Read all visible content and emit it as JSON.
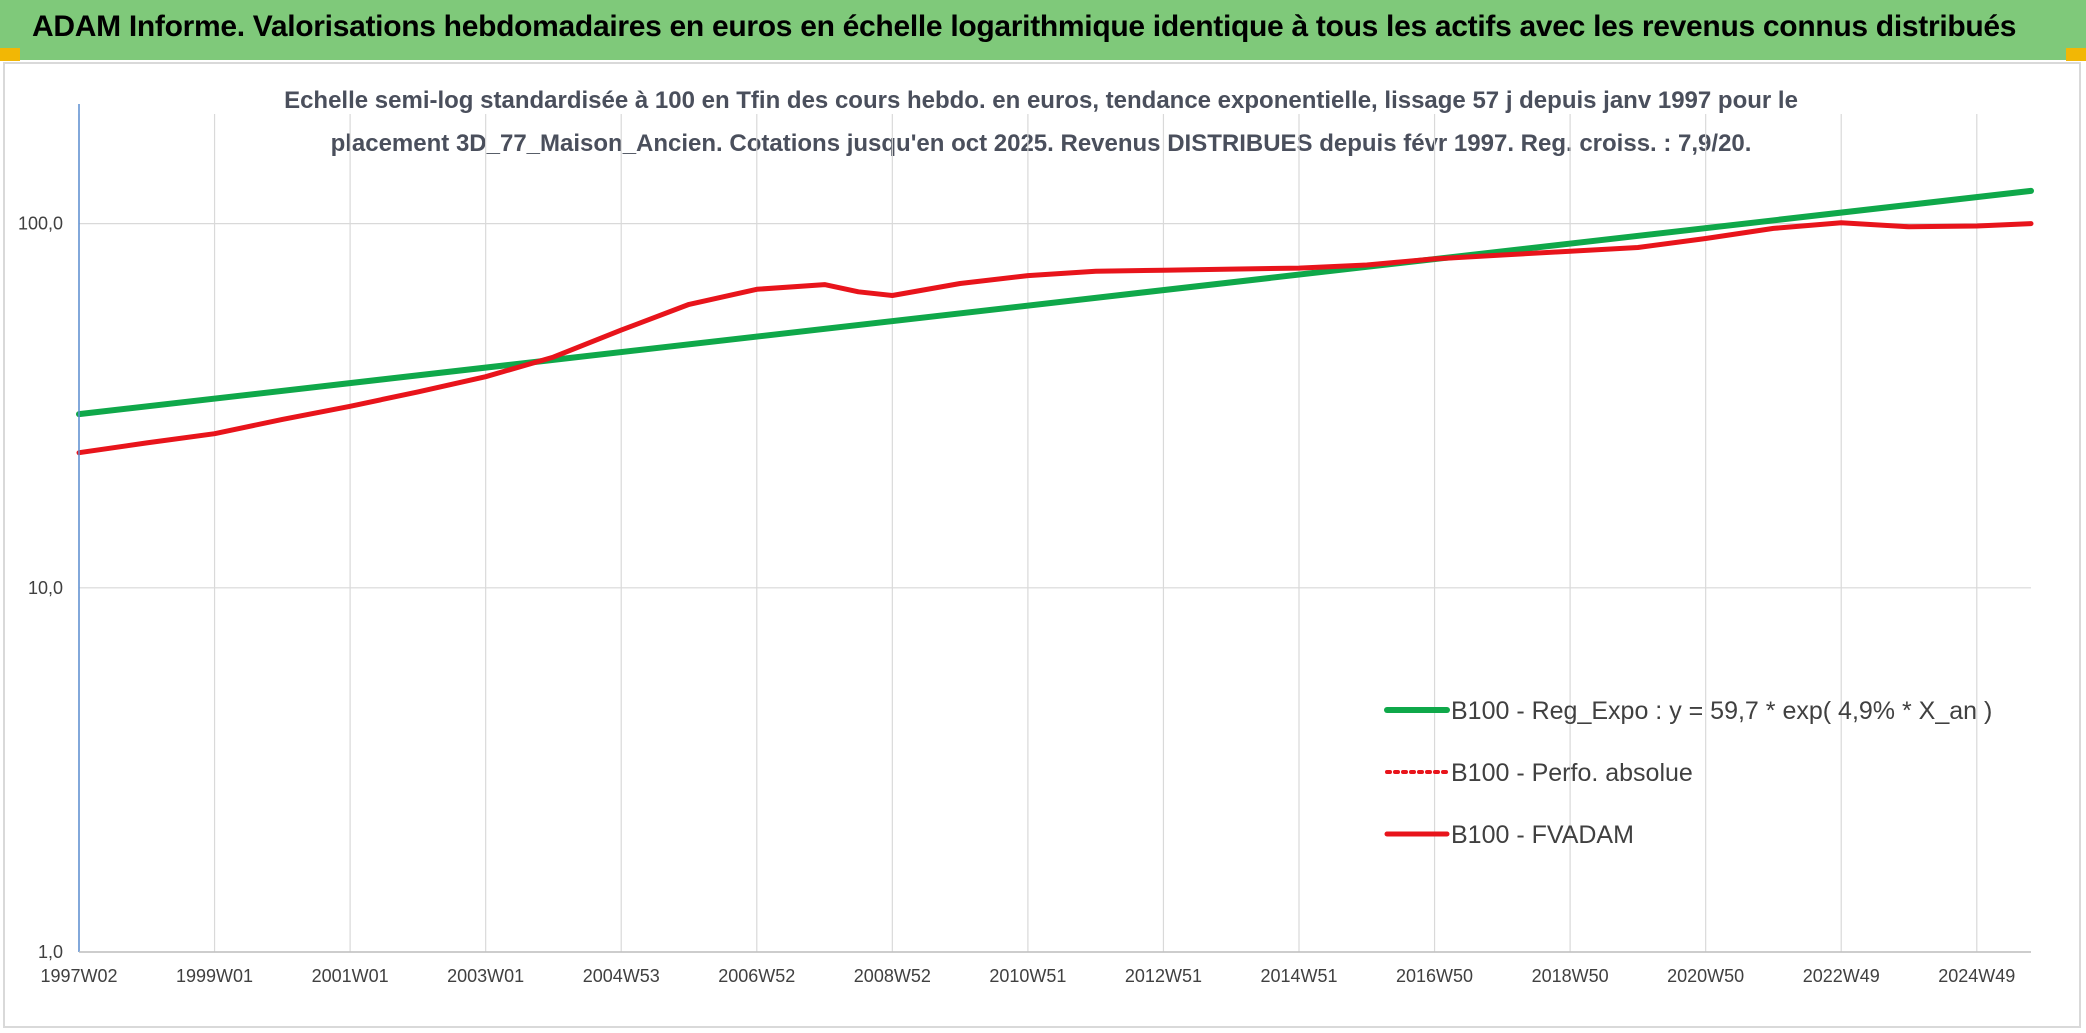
{
  "banner": {
    "title": "ADAM Informe. Valorisations hebdomadaires en euros en échelle logarithmique identique à tous les actifs avec les revenus connus distribués"
  },
  "colors": {
    "banner_bg": "#7fc97a",
    "corner_accent": "#f2b705",
    "regression": "#0fa84a",
    "fvadam": "#e8141b",
    "perfo": "#e8141b",
    "grid": "#d9d9d9",
    "axis": "#5b8ed1"
  },
  "chart_data": {
    "type": "line",
    "subtitle_lines": [
      "Echelle semi-log standardisée à 100 en Tfin des cours hebdo. en euros, tendance exponentielle, lissage 57 j depuis janv 1997 pour le",
      "placement 3D_77_Maison_Ancien. Cotations jusqu'en oct 2025. Revenus DISTRIBUES depuis févr 1997. Reg. croiss. : 7,9/20."
    ],
    "y_scale": "log",
    "ylim": [
      1,
      200
    ],
    "y_ticks": [
      {
        "value": 1,
        "label": "1,0"
      },
      {
        "value": 10,
        "label": "10,0"
      },
      {
        "value": 100,
        "label": "100,0"
      }
    ],
    "xlim": [
      1997.0,
      2025.8
    ],
    "x_ticks": [
      {
        "value": 1997.0,
        "label": "1997W02"
      },
      {
        "value": 1999.0,
        "label": "1999W01"
      },
      {
        "value": 2001.0,
        "label": "2001W01"
      },
      {
        "value": 2003.0,
        "label": "2003W01"
      },
      {
        "value": 2005.0,
        "label": "2004W53"
      },
      {
        "value": 2007.0,
        "label": "2006W52"
      },
      {
        "value": 2009.0,
        "label": "2008W52"
      },
      {
        "value": 2011.0,
        "label": "2010W51"
      },
      {
        "value": 2013.0,
        "label": "2012W51"
      },
      {
        "value": 2015.0,
        "label": "2014W51"
      },
      {
        "value": 2017.0,
        "label": "2016W50"
      },
      {
        "value": 2019.0,
        "label": "2018W50"
      },
      {
        "value": 2021.0,
        "label": "2020W50"
      },
      {
        "value": 2023.0,
        "label": "2022W49"
      },
      {
        "value": 2025.0,
        "label": "2024W49"
      }
    ],
    "legend_position": "bottom-right",
    "grid": true,
    "series": [
      {
        "name": "B100 - Reg_Expo : y = 59,7 * exp( 4,9% *  X_an )",
        "style": "solid-green",
        "x": [
          1997.0,
          2025.8
        ],
        "y": [
          30.0,
          123.0
        ]
      },
      {
        "name": "B100 - Perfo. absolue",
        "style": "dotted-red",
        "x": [],
        "y": []
      },
      {
        "name": "B100 - FVADAM",
        "style": "solid-red",
        "x": [
          1997.0,
          1998.0,
          1999.0,
          2000.0,
          2001.0,
          2002.0,
          2003.0,
          2004.0,
          2005.0,
          2006.0,
          2007.0,
          2008.0,
          2008.5,
          2009.0,
          2010.0,
          2011.0,
          2012.0,
          2013.0,
          2014.0,
          2015.0,
          2016.0,
          2017.0,
          2018.0,
          2019.0,
          2020.0,
          2021.0,
          2022.0,
          2023.0,
          2024.0,
          2025.0,
          2025.8
        ],
        "y": [
          23.5,
          25.0,
          26.5,
          29.0,
          31.5,
          34.5,
          38.0,
          43.0,
          51.0,
          60.0,
          66.0,
          68.0,
          65.0,
          63.5,
          68.5,
          72.0,
          74.0,
          74.5,
          75.0,
          75.5,
          77.0,
          80.0,
          82.0,
          84.0,
          86.0,
          91.0,
          97.0,
          100.5,
          98.0,
          98.5,
          100.0
        ]
      }
    ]
  }
}
